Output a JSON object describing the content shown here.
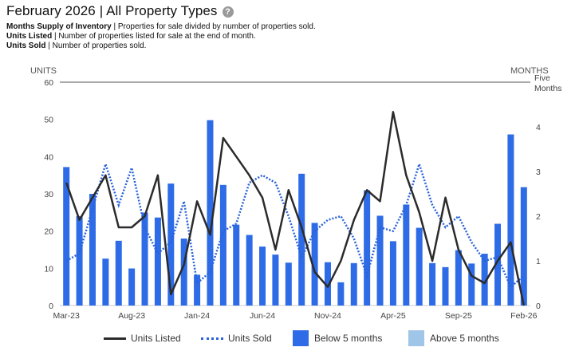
{
  "header": {
    "title": "February 2026 | All Property Types",
    "help_icon": "question-circle-icon",
    "definitions": [
      {
        "term": "Months Supply of Inventory",
        "text": " | Properties for sale divided by number of properties sold."
      },
      {
        "term": "Units Listed",
        "text": " | Number of properties listed for sale at the end of month."
      },
      {
        "term": "Units Sold",
        "text": " | Number of properties sold."
      }
    ]
  },
  "legend": {
    "units_listed": "Units Listed",
    "units_sold": "Units Sold",
    "below": "Below 5 months",
    "above": "Above 5 months"
  },
  "colors": {
    "below": "#2e6be6",
    "above": "#9fc5e8",
    "listed": "#2b2b2b",
    "sold": "#2a63d9",
    "reference": "#555555"
  },
  "chart_data": {
    "type": "bar",
    "x": [
      "Mar-23",
      "Apr-23",
      "May-23",
      "Jun-23",
      "Jul-23",
      "Aug-23",
      "Sep-23",
      "Oct-23",
      "Nov-23",
      "Dec-23",
      "Jan-24",
      "Feb-24",
      "Mar-24",
      "Apr-24",
      "May-24",
      "Jun-24",
      "Jul-24",
      "Aug-24",
      "Sep-24",
      "Oct-24",
      "Nov-24",
      "Dec-24",
      "Jan-25",
      "Feb-25",
      "Mar-25",
      "Apr-25",
      "May-25",
      "Jun-25",
      "Jul-25",
      "Aug-25",
      "Sep-25",
      "Oct-25",
      "Nov-25",
      "Dec-25",
      "Jan-26",
      "Feb-26"
    ],
    "x_tick_labels": [
      "Mar-23",
      "Aug-23",
      "Jan-24",
      "Jun-24",
      "Nov-24",
      "Apr-25",
      "Sep-25",
      "Feb-26"
    ],
    "left_axis": {
      "label": "UNITS",
      "ylim": [
        0,
        60
      ],
      "ticks": [
        "0",
        "10",
        "20",
        "30",
        "40",
        "50",
        "60"
      ]
    },
    "right_axis": {
      "label": "MONTHS",
      "ylim": [
        0,
        5
      ],
      "ticks": [
        "0",
        "1",
        "2",
        "3",
        "4"
      ]
    },
    "reference_line": {
      "value": 5,
      "label_line1": "Five",
      "label_line2": "Months"
    },
    "series": [
      {
        "name": "Units Listed",
        "type": "line",
        "style": "solid",
        "axis": "left",
        "values": [
          33,
          23,
          29,
          35,
          21,
          21,
          24,
          35,
          3,
          11,
          28,
          19,
          45,
          40,
          35,
          29,
          15,
          31,
          21,
          9,
          5,
          12,
          23,
          31,
          28,
          52,
          35,
          25,
          12,
          29,
          15,
          8,
          6,
          12,
          17,
          0
        ]
      },
      {
        "name": "Units Sold",
        "type": "line",
        "style": "dotted",
        "axis": "left",
        "values": [
          12,
          14,
          26,
          38,
          27,
          37,
          21,
          14,
          17,
          28,
          6,
          9,
          20,
          22,
          33,
          35,
          33,
          24,
          13,
          20,
          23,
          24,
          18,
          8,
          21,
          20,
          27,
          38,
          27,
          21,
          24,
          17,
          12,
          13,
          5,
          8
        ]
      },
      {
        "name": "Months Supply of Inventory",
        "type": "bar",
        "axis": "right",
        "values": [
          3.1,
          2.0,
          2.5,
          1.05,
          1.45,
          0.83,
          2.08,
          1.97,
          2.73,
          1.5,
          0.69,
          4.15,
          2.7,
          1.81,
          1.58,
          1.32,
          1.14,
          0.96,
          2.95,
          1.85,
          0.97,
          0.52,
          0.95,
          2.58,
          2.01,
          1.44,
          2.26,
          1.74,
          0.95,
          0.86,
          1.24,
          0.94,
          1.16,
          1.83,
          3.83,
          2.65
        ]
      }
    ]
  }
}
